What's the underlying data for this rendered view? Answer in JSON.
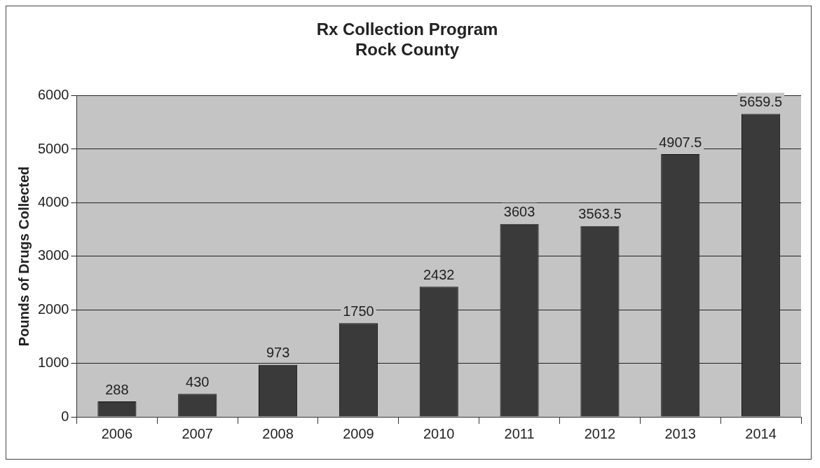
{
  "chart_data": {
    "type": "bar",
    "title": [
      "Rx Collection Program",
      "Rock County"
    ],
    "ylabel": "Pounds of Drugs Collected",
    "categories": [
      "2006",
      "2007",
      "2008",
      "2009",
      "2010",
      "2011",
      "2012",
      "2013",
      "2014"
    ],
    "values": [
      288,
      430,
      973,
      1750,
      2432,
      3603,
      3563.5,
      4907.5,
      5659.5
    ],
    "color": "#3a3a3a",
    "ylim": [
      0,
      6000
    ],
    "yticks": [
      0,
      1000,
      2000,
      3000,
      4000,
      5000,
      6000
    ],
    "grid": "y",
    "data_labels": true,
    "legend": false
  }
}
